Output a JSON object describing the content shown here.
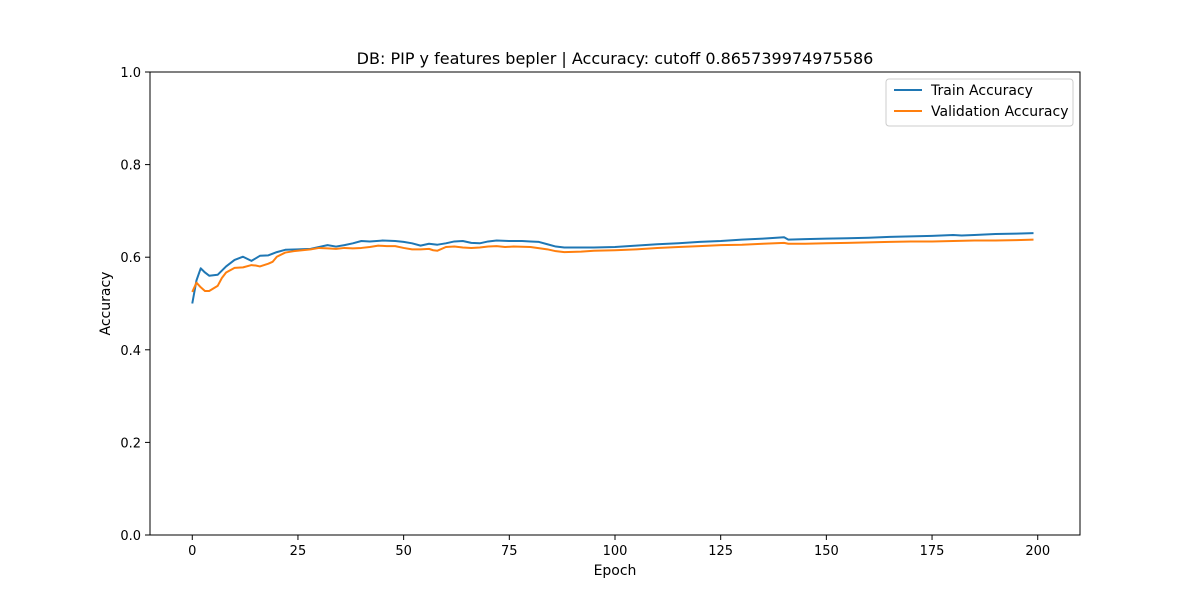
{
  "chart_data": {
    "type": "line",
    "title": "DB: PIP y features bepler | Accuracy: cutoff 0.865739974975586",
    "xlabel": "Epoch",
    "ylabel": "Accuracy",
    "xlim": [
      -10,
      210
    ],
    "ylim": [
      0,
      1
    ],
    "xticks": [
      0,
      25,
      50,
      75,
      100,
      125,
      150,
      175,
      200
    ],
    "yticks": [
      0.0,
      0.2,
      0.4,
      0.6,
      0.8,
      1.0
    ],
    "grid": false,
    "legend_position": "top-right",
    "series": [
      {
        "name": "Train Accuracy",
        "color": "#1f77b4",
        "points": [
          [
            0,
            0.5
          ],
          [
            1,
            0.55
          ],
          [
            2,
            0.576
          ],
          [
            3,
            0.567
          ],
          [
            4,
            0.56
          ],
          [
            6,
            0.562
          ],
          [
            8,
            0.58
          ],
          [
            10,
            0.594
          ],
          [
            12,
            0.601
          ],
          [
            14,
            0.592
          ],
          [
            16,
            0.603
          ],
          [
            18,
            0.604
          ],
          [
            20,
            0.611
          ],
          [
            22,
            0.616
          ],
          [
            25,
            0.617
          ],
          [
            28,
            0.618
          ],
          [
            30,
            0.622
          ],
          [
            32,
            0.626
          ],
          [
            34,
            0.623
          ],
          [
            36,
            0.626
          ],
          [
            38,
            0.63
          ],
          [
            40,
            0.635
          ],
          [
            42,
            0.634
          ],
          [
            45,
            0.636
          ],
          [
            48,
            0.635
          ],
          [
            50,
            0.633
          ],
          [
            52,
            0.63
          ],
          [
            54,
            0.625
          ],
          [
            56,
            0.629
          ],
          [
            58,
            0.627
          ],
          [
            60,
            0.63
          ],
          [
            62,
            0.634
          ],
          [
            64,
            0.635
          ],
          [
            66,
            0.631
          ],
          [
            68,
            0.63
          ],
          [
            70,
            0.634
          ],
          [
            72,
            0.636
          ],
          [
            75,
            0.635
          ],
          [
            78,
            0.635
          ],
          [
            80,
            0.634
          ],
          [
            82,
            0.633
          ],
          [
            84,
            0.628
          ],
          [
            86,
            0.623
          ],
          [
            88,
            0.621
          ],
          [
            90,
            0.621
          ],
          [
            95,
            0.621
          ],
          [
            100,
            0.622
          ],
          [
            105,
            0.625
          ],
          [
            110,
            0.628
          ],
          [
            115,
            0.63
          ],
          [
            120,
            0.633
          ],
          [
            125,
            0.635
          ],
          [
            130,
            0.638
          ],
          [
            135,
            0.64
          ],
          [
            140,
            0.643
          ],
          [
            141,
            0.638
          ],
          [
            145,
            0.639
          ],
          [
            150,
            0.64
          ],
          [
            155,
            0.641
          ],
          [
            160,
            0.642
          ],
          [
            165,
            0.644
          ],
          [
            170,
            0.645
          ],
          [
            175,
            0.646
          ],
          [
            180,
            0.648
          ],
          [
            182,
            0.647
          ],
          [
            185,
            0.648
          ],
          [
            190,
            0.65
          ],
          [
            195,
            0.651
          ],
          [
            199,
            0.652
          ]
        ]
      },
      {
        "name": "Validation Accuracy",
        "color": "#ff7f0e",
        "points": [
          [
            0,
            0.525
          ],
          [
            1,
            0.545
          ],
          [
            2,
            0.535
          ],
          [
            3,
            0.527
          ],
          [
            4,
            0.527
          ],
          [
            6,
            0.538
          ],
          [
            7,
            0.555
          ],
          [
            8,
            0.567
          ],
          [
            10,
            0.577
          ],
          [
            12,
            0.578
          ],
          [
            14,
            0.583
          ],
          [
            15,
            0.582
          ],
          [
            16,
            0.58
          ],
          [
            18,
            0.586
          ],
          [
            19,
            0.59
          ],
          [
            20,
            0.601
          ],
          [
            22,
            0.61
          ],
          [
            24,
            0.613
          ],
          [
            26,
            0.615
          ],
          [
            28,
            0.617
          ],
          [
            30,
            0.62
          ],
          [
            32,
            0.619
          ],
          [
            34,
            0.618
          ],
          [
            36,
            0.62
          ],
          [
            38,
            0.619
          ],
          [
            40,
            0.62
          ],
          [
            42,
            0.622
          ],
          [
            44,
            0.625
          ],
          [
            46,
            0.624
          ],
          [
            48,
            0.624
          ],
          [
            50,
            0.62
          ],
          [
            52,
            0.617
          ],
          [
            54,
            0.617
          ],
          [
            56,
            0.618
          ],
          [
            57,
            0.615
          ],
          [
            58,
            0.614
          ],
          [
            60,
            0.622
          ],
          [
            62,
            0.623
          ],
          [
            64,
            0.621
          ],
          [
            66,
            0.62
          ],
          [
            68,
            0.621
          ],
          [
            70,
            0.623
          ],
          [
            72,
            0.624
          ],
          [
            74,
            0.622
          ],
          [
            76,
            0.623
          ],
          [
            80,
            0.622
          ],
          [
            84,
            0.617
          ],
          [
            86,
            0.613
          ],
          [
            88,
            0.611
          ],
          [
            92,
            0.612
          ],
          [
            95,
            0.614
          ],
          [
            100,
            0.615
          ],
          [
            105,
            0.617
          ],
          [
            110,
            0.62
          ],
          [
            115,
            0.622
          ],
          [
            120,
            0.624
          ],
          [
            125,
            0.626
          ],
          [
            130,
            0.627
          ],
          [
            135,
            0.629
          ],
          [
            140,
            0.631
          ],
          [
            141,
            0.629
          ],
          [
            145,
            0.629
          ],
          [
            150,
            0.63
          ],
          [
            155,
            0.631
          ],
          [
            160,
            0.632
          ],
          [
            165,
            0.633
          ],
          [
            170,
            0.634
          ],
          [
            175,
            0.634
          ],
          [
            180,
            0.635
          ],
          [
            185,
            0.636
          ],
          [
            190,
            0.636
          ],
          [
            195,
            0.637
          ],
          [
            199,
            0.638
          ]
        ]
      }
    ]
  }
}
